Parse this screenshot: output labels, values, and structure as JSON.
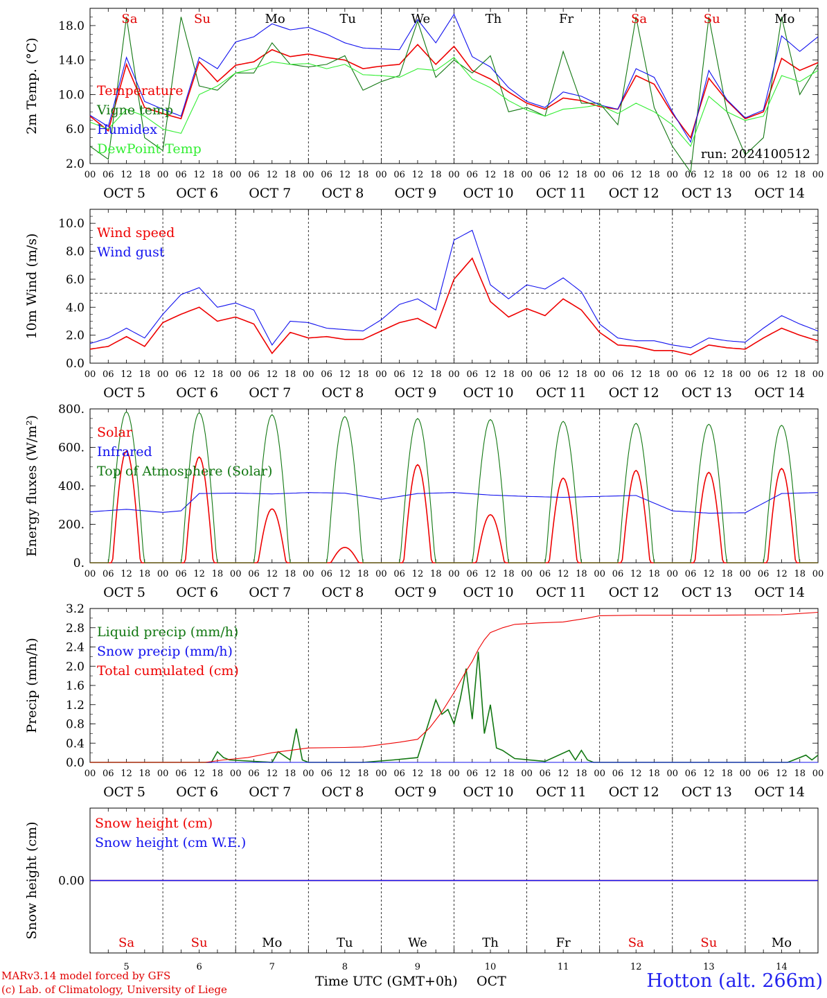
{
  "footer": {
    "credit_line1": "MARv3.14 model forced by GFS",
    "credit_line2": "(c) Lab. of Climatology, University of Liege",
    "time_axis_label": "Time UTC (GMT+0h)",
    "month_label": "OCT",
    "station": "Hotton (alt. 266m)"
  },
  "time_axis": {
    "hour_ticks": [
      "00",
      "06",
      "12",
      "18"
    ],
    "end_tick": "00",
    "day_labels": [
      "OCT  5",
      "OCT  6",
      "OCT  7",
      "OCT  8",
      "OCT  9",
      "OCT 10",
      "OCT 11",
      "OCT 12",
      "OCT 13",
      "OCT 14"
    ],
    "day_numbers": [
      "5",
      "6",
      "7",
      "8",
      "9",
      "10",
      "11",
      "12",
      "13",
      "14"
    ],
    "weekdays": [
      "Sa",
      "Su",
      "Mo",
      "Tu",
      "We",
      "Th",
      "Fr",
      "Sa",
      "Su",
      "Mo"
    ],
    "weekend_flags": [
      true,
      true,
      false,
      false,
      false,
      false,
      false,
      true,
      true,
      false
    ],
    "weekend_color": "#e00000",
    "weekday_color": "#000000"
  },
  "chart_data": [
    {
      "type": "line",
      "ylabel": "2m Temp. (°C)",
      "ylim": [
        2.0,
        20.0
      ],
      "yticks": [
        "2.0",
        "6.0",
        "10.0",
        "14.0",
        "18.0"
      ],
      "annotation": "run: 2024100512",
      "x_unit": "hours since OCT 5 00 UTC",
      "series": [
        {
          "name": "Temperature",
          "color": "#ee0000",
          "x": [
            0,
            6,
            12,
            18,
            24,
            30,
            36,
            42,
            48,
            54,
            60,
            66,
            72,
            78,
            84,
            90,
            96,
            102,
            108,
            114,
            120,
            126,
            132,
            138,
            144,
            150,
            156,
            162,
            168,
            174,
            180,
            186,
            192,
            198,
            204,
            210,
            216,
            222,
            228,
            234,
            240
          ],
          "values": [
            7.5,
            5.8,
            13.5,
            8.5,
            7.8,
            7.2,
            13.8,
            11.5,
            13.4,
            13.8,
            15.2,
            14.4,
            14.7,
            14.3,
            14.0,
            13.0,
            13.3,
            13.5,
            15.8,
            13.5,
            15.6,
            12.8,
            11.8,
            10.3,
            9.0,
            8.3,
            9.6,
            9.3,
            8.6,
            8.3,
            12.2,
            11.2,
            7.8,
            5.0,
            11.9,
            9.3,
            7.2,
            8.0,
            14.2,
            12.8,
            13.7
          ]
        },
        {
          "name": "Vigne temp",
          "color": "#117711",
          "x": [
            0,
            6,
            12,
            18,
            24,
            30,
            36,
            42,
            48,
            54,
            60,
            66,
            72,
            78,
            84,
            90,
            96,
            102,
            108,
            114,
            120,
            126,
            132,
            138,
            144,
            150,
            156,
            162,
            168,
            174,
            180,
            186,
            192,
            198,
            204,
            210,
            216,
            222,
            228,
            234,
            240
          ],
          "values": [
            4.0,
            2.5,
            19.0,
            5.0,
            3.5,
            19.0,
            11.0,
            10.5,
            12.5,
            12.5,
            16.0,
            13.5,
            13.2,
            13.5,
            14.5,
            10.5,
            11.5,
            12.2,
            18.5,
            12.0,
            14.0,
            12.5,
            14.5,
            8.0,
            8.5,
            7.5,
            15.0,
            9.0,
            9.0,
            6.5,
            19.0,
            8.5,
            4.0,
            1.0,
            19.0,
            8.0,
            3.0,
            5.0,
            19.0,
            10.0,
            13.5
          ]
        },
        {
          "name": "Humidex",
          "color": "#1111ee",
          "x": [
            0,
            6,
            12,
            18,
            24,
            30,
            36,
            42,
            48,
            54,
            60,
            66,
            72,
            78,
            84,
            90,
            96,
            102,
            108,
            114,
            120,
            126,
            132,
            138,
            144,
            150,
            156,
            162,
            168,
            174,
            180,
            186,
            192,
            198,
            204,
            210,
            216,
            222,
            228,
            234,
            240
          ],
          "values": [
            7.6,
            6.3,
            14.3,
            9.2,
            8.3,
            7.5,
            14.3,
            13.0,
            16.1,
            16.7,
            18.2,
            17.5,
            17.8,
            17.0,
            16.0,
            15.4,
            15.3,
            15.2,
            18.7,
            16.0,
            19.3,
            14.4,
            13.2,
            10.8,
            9.2,
            8.5,
            10.3,
            9.8,
            8.8,
            8.3,
            13.0,
            12.0,
            8.0,
            4.5,
            12.8,
            9.4,
            7.3,
            8.2,
            16.8,
            15.0,
            16.7
          ]
        },
        {
          "name": "DewPoint Temp",
          "color": "#33ee33",
          "x": [
            0,
            6,
            12,
            18,
            24,
            30,
            36,
            42,
            48,
            54,
            60,
            66,
            72,
            78,
            84,
            90,
            96,
            102,
            108,
            114,
            120,
            126,
            132,
            138,
            144,
            150,
            156,
            162,
            168,
            174,
            180,
            186,
            192,
            198,
            204,
            210,
            216,
            222,
            228,
            234,
            240
          ],
          "values": [
            6.8,
            6.0,
            8.3,
            7.5,
            6.0,
            5.5,
            10.0,
            11.0,
            12.5,
            13.0,
            13.8,
            13.5,
            13.6,
            13.0,
            13.5,
            12.3,
            12.2,
            12.0,
            13.0,
            12.8,
            14.3,
            11.8,
            10.8,
            9.3,
            8.2,
            7.5,
            8.3,
            8.5,
            8.8,
            7.8,
            9.0,
            8.0,
            6.5,
            4.0,
            9.8,
            8.0,
            7.0,
            7.5,
            12.2,
            11.5,
            12.8
          ]
        }
      ]
    },
    {
      "type": "line",
      "ylabel": "10m Wind (m/s)",
      "ylim": [
        0.0,
        11.0
      ],
      "yticks": [
        "0.0",
        "2.0",
        "4.0",
        "6.0",
        "8.0",
        "10.0"
      ],
      "reference_line": 5.0,
      "x_unit": "hours since OCT 5 00 UTC",
      "series": [
        {
          "name": "Wind speed",
          "color": "#ee0000",
          "x": [
            0,
            6,
            12,
            18,
            24,
            30,
            36,
            42,
            48,
            54,
            60,
            66,
            72,
            78,
            84,
            90,
            96,
            102,
            108,
            114,
            120,
            126,
            132,
            138,
            144,
            150,
            156,
            162,
            168,
            174,
            180,
            186,
            192,
            198,
            204,
            210,
            216,
            222,
            228,
            234,
            240
          ],
          "values": [
            1.0,
            1.2,
            1.9,
            1.2,
            2.9,
            3.5,
            4.0,
            3.0,
            3.3,
            2.8,
            0.7,
            2.2,
            1.8,
            1.9,
            1.7,
            1.7,
            2.3,
            2.9,
            3.2,
            2.5,
            6.0,
            7.5,
            4.4,
            3.3,
            3.9,
            3.4,
            4.6,
            3.8,
            2.2,
            1.3,
            1.2,
            0.9,
            0.9,
            0.6,
            1.3,
            1.1,
            1.0,
            1.8,
            2.5,
            2.0,
            1.6
          ]
        },
        {
          "name": "Wind gust",
          "color": "#1111ee",
          "x": [
            0,
            6,
            12,
            18,
            24,
            30,
            36,
            42,
            48,
            54,
            60,
            66,
            72,
            78,
            84,
            90,
            96,
            102,
            108,
            114,
            120,
            126,
            132,
            138,
            144,
            150,
            156,
            162,
            168,
            174,
            180,
            186,
            192,
            198,
            204,
            210,
            216,
            222,
            228,
            234,
            240
          ],
          "values": [
            1.4,
            1.8,
            2.5,
            1.8,
            3.5,
            4.9,
            5.4,
            4.0,
            4.3,
            3.8,
            1.3,
            3.0,
            2.9,
            2.5,
            2.4,
            2.3,
            3.1,
            4.2,
            4.6,
            3.8,
            8.8,
            9.5,
            5.6,
            4.6,
            5.6,
            5.3,
            6.1,
            5.1,
            2.8,
            1.8,
            1.6,
            1.6,
            1.3,
            1.1,
            1.8,
            1.6,
            1.5,
            2.5,
            3.4,
            2.8,
            2.3
          ]
        }
      ]
    },
    {
      "type": "line",
      "ylabel": "Energy fluxes (W/m²)",
      "ylim": [
        0.0,
        800.0
      ],
      "yticks": [
        "0.",
        "200.",
        "400.",
        "600.",
        "800."
      ],
      "x_unit": "hours since OCT 5 00 UTC",
      "series": [
        {
          "name": "Solar",
          "color": "#ee0000",
          "daily_peak_values": [
            580,
            550,
            280,
            80,
            510,
            250,
            440,
            480,
            470,
            490
          ]
        },
        {
          "name": "Infrared",
          "color": "#1111ee",
          "x": [
            0,
            12,
            24,
            30,
            36,
            48,
            60,
            72,
            84,
            96,
            108,
            120,
            132,
            144,
            156,
            168,
            180,
            192,
            204,
            216,
            228,
            240
          ],
          "values": [
            265,
            278,
            262,
            270,
            360,
            362,
            358,
            365,
            362,
            330,
            360,
            365,
            352,
            345,
            340,
            345,
            350,
            270,
            258,
            260,
            360,
            365
          ]
        },
        {
          "name": "Top of Atmosphere (Solar)",
          "color": "#117711",
          "daily_peak_values": [
            785,
            780,
            770,
            760,
            750,
            745,
            735,
            725,
            720,
            715
          ]
        }
      ]
    },
    {
      "type": "line",
      "ylabel": "Precip (mm/h)",
      "ylim": [
        0.0,
        3.2
      ],
      "yticks": [
        "0.0",
        "0.4",
        "0.8",
        "1.2",
        "1.6",
        "2.0",
        "2.4",
        "2.8",
        "3.2"
      ],
      "x_unit": "hours since OCT 5 00 UTC",
      "series": [
        {
          "name": "Liquid precip (mm/h)",
          "color": "#117711",
          "x": [
            0,
            40,
            42,
            44,
            46,
            60,
            62,
            66,
            68,
            70,
            72,
            90,
            100,
            108,
            112,
            114,
            116,
            118,
            120,
            122,
            124,
            126,
            128,
            130,
            132,
            134,
            136,
            140,
            150,
            158,
            160,
            162,
            164,
            166,
            200,
            230,
            236,
            238,
            240
          ],
          "values": [
            0,
            0,
            0.22,
            0.1,
            0.05,
            0,
            0.22,
            0.05,
            0.7,
            0.05,
            0,
            0,
            0.05,
            0.1,
            0.9,
            1.3,
            1.0,
            1.1,
            0.8,
            1.3,
            1.95,
            0.9,
            2.3,
            0.6,
            1.2,
            0.3,
            0.25,
            0.08,
            0.02,
            0.25,
            0.05,
            0.25,
            0.05,
            0,
            0,
            0,
            0.15,
            0.05,
            0.15
          ]
        },
        {
          "name": "Snow precip (mm/h)",
          "color": "#1111ee",
          "x": [
            0,
            240
          ],
          "values": [
            0,
            0
          ]
        },
        {
          "name": "Total cumulated (cm)",
          "color": "#ee0000",
          "x": [
            0,
            38,
            44,
            52,
            60,
            66,
            72,
            84,
            90,
            96,
            102,
            108,
            112,
            116,
            120,
            124,
            126,
            128,
            130,
            132,
            136,
            140,
            148,
            156,
            164,
            168,
            180,
            204,
            228,
            240
          ],
          "values": [
            0,
            0,
            0.05,
            0.1,
            0.2,
            0.25,
            0.3,
            0.31,
            0.32,
            0.37,
            0.42,
            0.48,
            0.72,
            1.05,
            1.45,
            1.9,
            2.1,
            2.35,
            2.55,
            2.7,
            2.8,
            2.87,
            2.9,
            2.92,
            3.0,
            3.05,
            3.06,
            3.06,
            3.07,
            3.12
          ]
        }
      ]
    },
    {
      "type": "line",
      "ylabel": "Snow height (cm)",
      "ylim": [
        -1.0,
        1.0
      ],
      "yticks": [
        "0.00"
      ],
      "x_unit": "hours since OCT 5 00 UTC",
      "series": [
        {
          "name": "Snow height (cm)",
          "color": "#ee0000",
          "x": [
            0,
            240
          ],
          "values": [
            0,
            0
          ]
        },
        {
          "name": "Snow height (cm W.E.)",
          "color": "#1111ee",
          "x": [
            0,
            240
          ],
          "values": [
            0,
            0
          ]
        }
      ]
    }
  ]
}
